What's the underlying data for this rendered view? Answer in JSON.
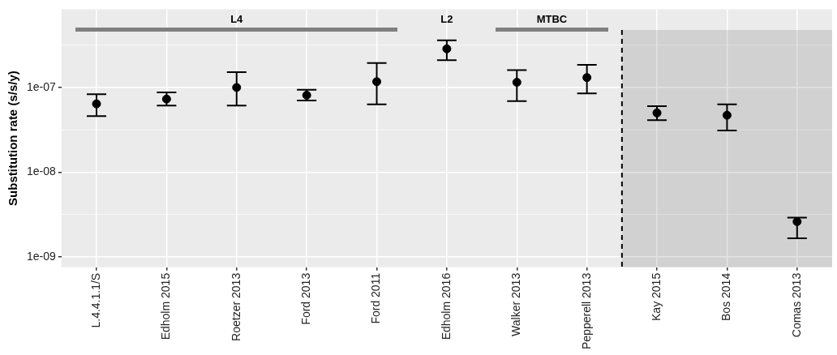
{
  "chart_data": {
    "type": "scatter",
    "ylabel": "Substitution rate (s/s/y)",
    "categories": [
      "L.4.4.1.1/S",
      "Edholm 2015",
      "Roetzer 2013",
      "Ford 2013",
      "Ford 2011",
      "Edholm 2016",
      "Walker 2013",
      "Pepperell 2013",
      "Kay 2015",
      "Bos 2014",
      "Comas 2013"
    ],
    "series": [
      {
        "color": "#000000",
        "values": [
          6.4e-08,
          7.3e-08,
          1e-07,
          8.1e-08,
          1.17e-07,
          2.86e-07,
          1.15e-07,
          1.31e-07,
          5e-08,
          4.7e-08,
          2.6e-09
        ],
        "errors": [
          [
            4.6e-08,
            8.3e-08
          ],
          [
            6.1e-08,
            8.75e-08
          ],
          [
            6.1e-08,
            1.52e-07
          ],
          [
            7e-08,
            9.4e-08
          ],
          [
            6.3e-08,
            1.94e-07
          ],
          [
            2.1e-07,
            3.6e-07
          ],
          [
            6.9e-08,
            1.6e-07
          ],
          [
            8.5e-08,
            1.85e-07
          ],
          [
            4.1e-08,
            6e-08
          ],
          [
            3.1e-08,
            6.3e-08
          ],
          [
            1.65e-09,
            2.9e-09
          ]
        ]
      }
    ],
    "log": "y",
    "ylim": [
      7.5e-10,
      8.4e-07
    ],
    "yticks": [
      {
        "value": 1e-09,
        "label": "1e-09"
      },
      {
        "value": 1e-08,
        "label": "1e-08"
      },
      {
        "value": 1e-07,
        "label": "1e-07"
      }
    ],
    "grid": true,
    "legend": false,
    "marker": "circle",
    "annotations": [
      "L4",
      "L2",
      "MTBC"
    ],
    "ref_lines": [
      {
        "axis": "x",
        "value": "Kay 2015",
        "line_style": "dashed",
        "color": "#000000"
      }
    ],
    "bands": [
      {
        "axis": "x",
        "from": "Kay 2015",
        "to": "Comas 2013"
      }
    ]
  }
}
